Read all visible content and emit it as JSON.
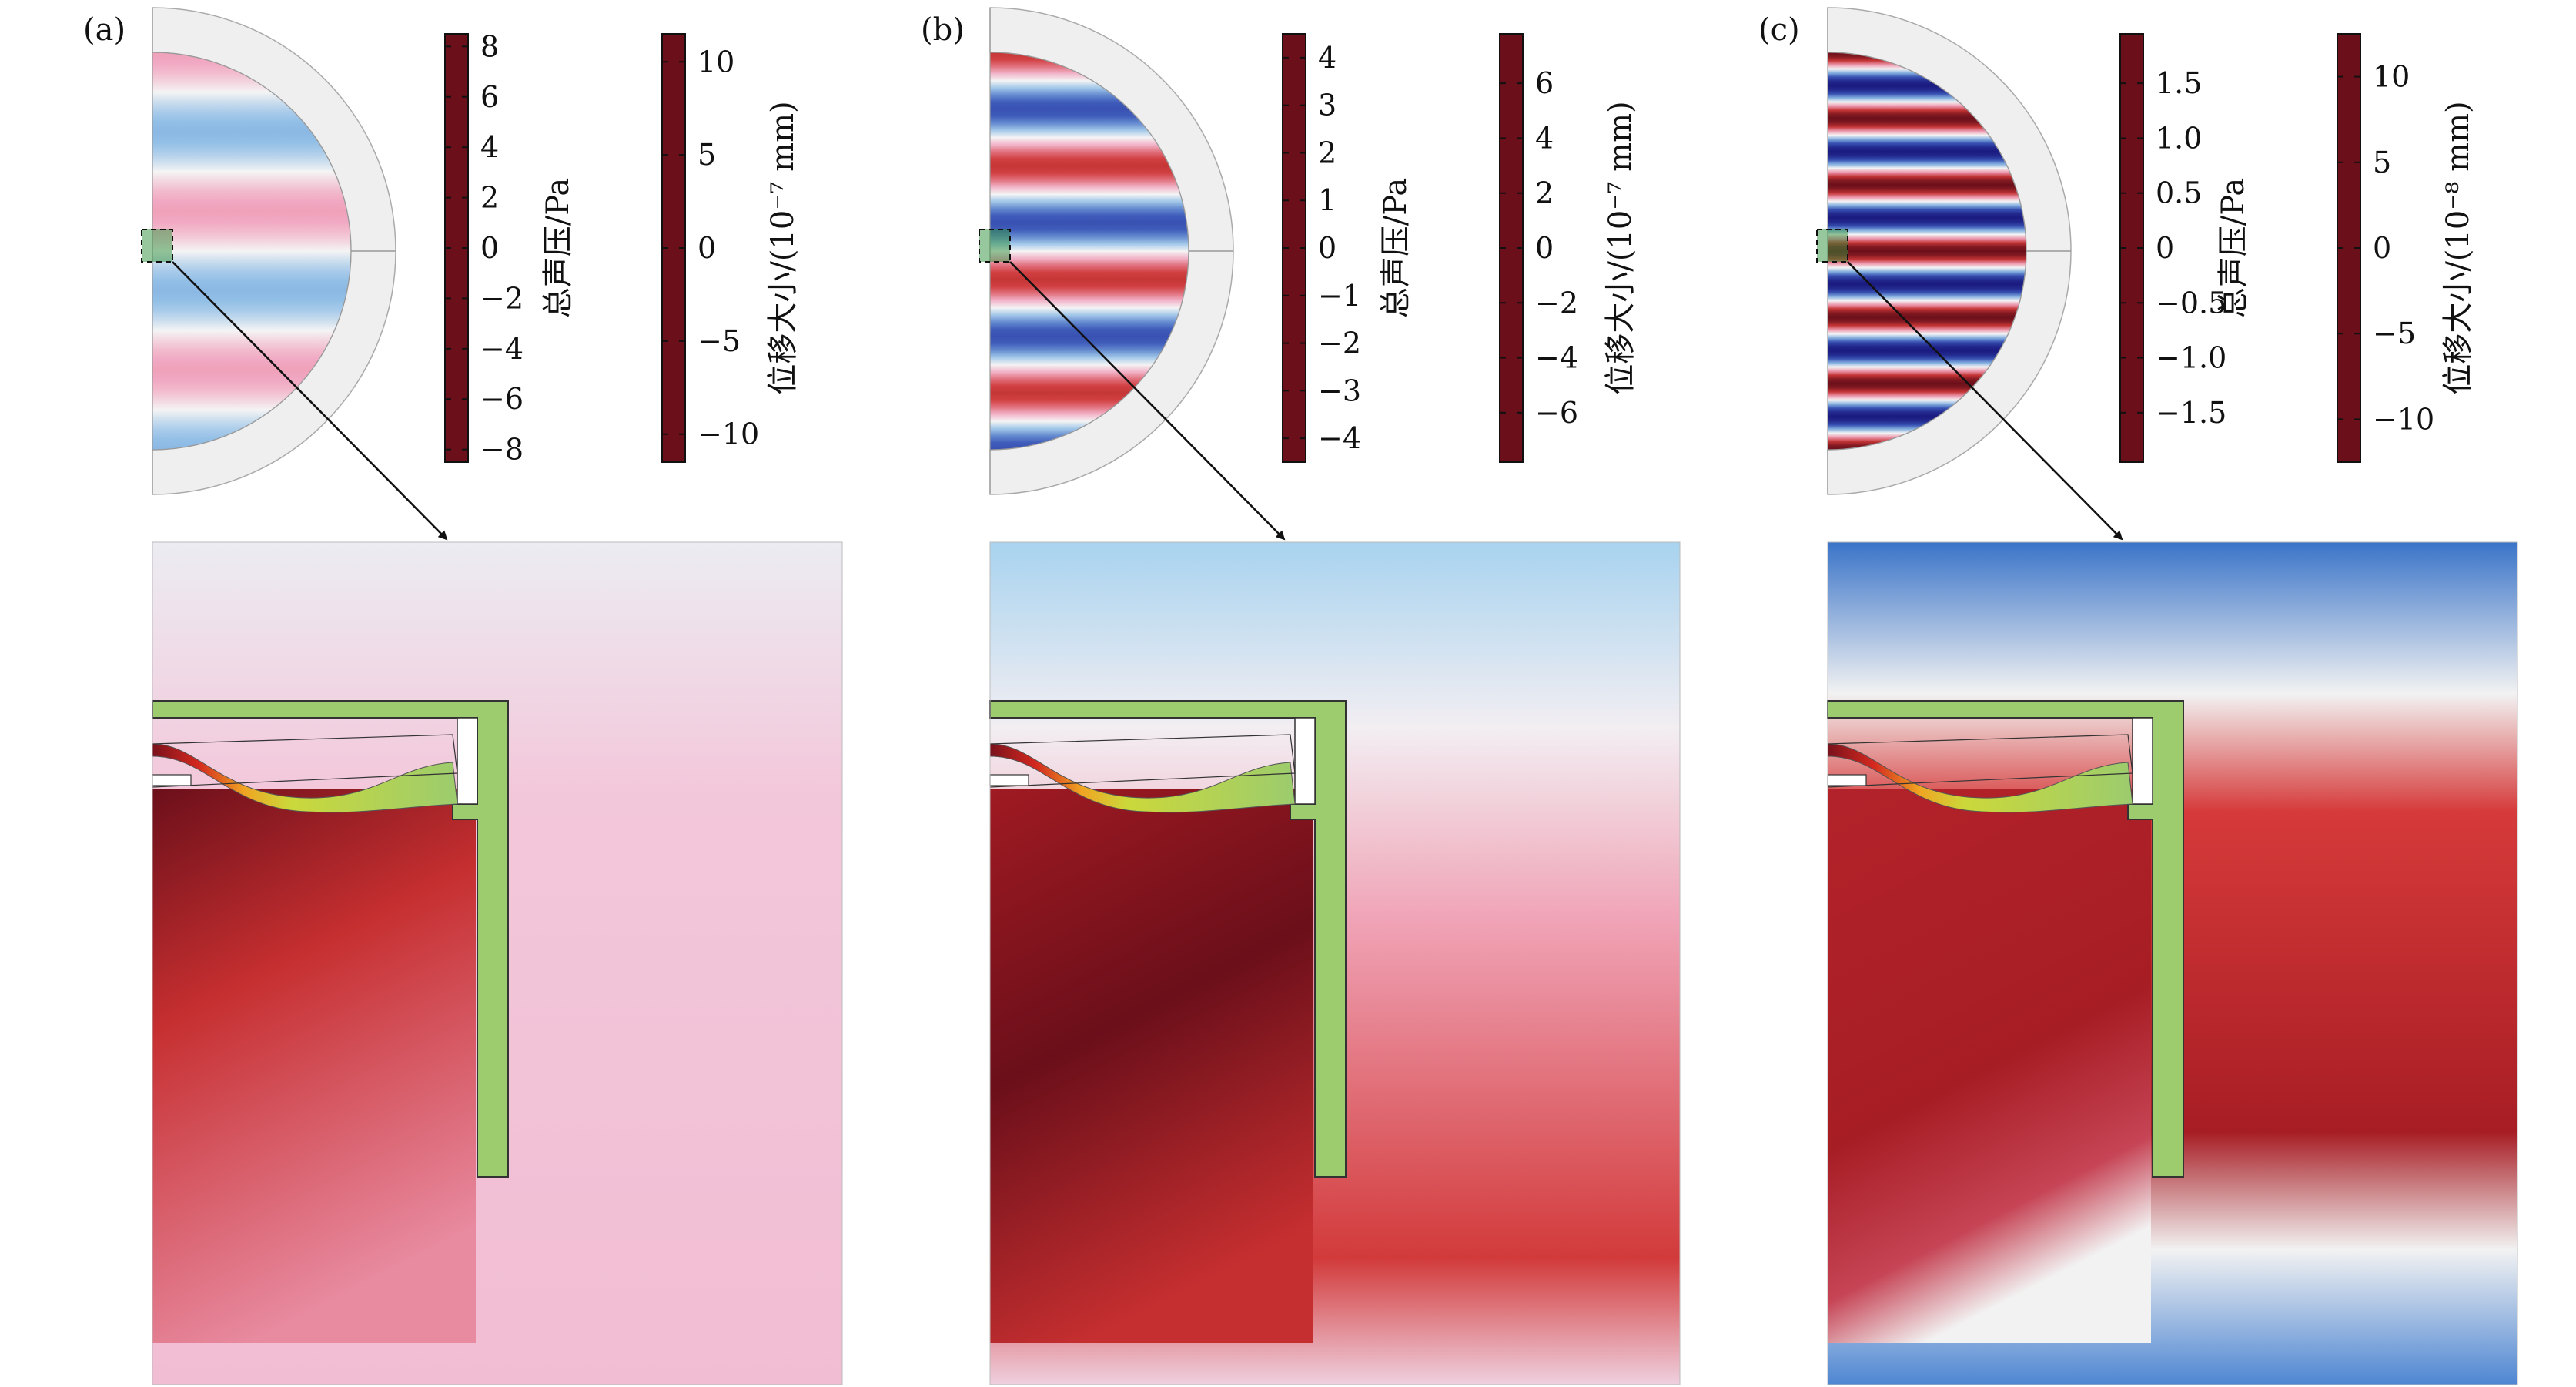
{
  "panels": [
    {
      "tag": "(a)",
      "pressure_scale": {
        "title": "总声压/Pa",
        "ticks": [
          "8",
          "6",
          "4",
          "2",
          "0",
          "−2",
          "−4",
          "−6",
          "−8"
        ],
        "range": [
          -8.5,
          8.5
        ]
      },
      "displacement_scale": {
        "title": "位移大小/(10⁻⁷ mm)",
        "ticks": [
          "10",
          "5",
          "0",
          "−5",
          "−10"
        ],
        "range": [
          -11.5,
          11.5
        ]
      },
      "stripes": 5,
      "stripe_strength": 0.35,
      "zoom_style": "pink"
    },
    {
      "tag": "(b)",
      "pressure_scale": {
        "title": "总声压/Pa",
        "ticks": [
          "4",
          "3",
          "2",
          "1",
          "0",
          "−1",
          "−2",
          "−3",
          "−4"
        ],
        "range": [
          -4.5,
          4.5
        ]
      },
      "displacement_scale": {
        "title": "位移大小/(10⁻⁷ mm)",
        "ticks": [
          "6",
          "4",
          "2",
          "0",
          "−2",
          "−4",
          "−6"
        ],
        "range": [
          -7.8,
          7.8
        ]
      },
      "stripes": 7,
      "stripe_strength": 0.7,
      "zoom_style": "darkred"
    },
    {
      "tag": "(c)",
      "pressure_scale": {
        "title": "总声压/Pa",
        "ticks": [
          "1.5",
          "1.0",
          "0.5",
          "0",
          "−0.5",
          "−1.0",
          "−1.5"
        ],
        "range": [
          -1.95,
          1.95
        ]
      },
      "displacement_scale": {
        "title": "位移大小/(10⁻⁸ mm)",
        "ticks": [
          "10",
          "5",
          "0",
          "−5",
          "−10"
        ],
        "range": [
          -12.5,
          12.5
        ]
      },
      "stripes": 12,
      "stripe_strength": 1.0,
      "zoom_style": "red-blue"
    }
  ],
  "colors": {
    "pressure_map": [
      "#1a1a80",
      "#3b57b8",
      "#8fbde6",
      "#f4f4f4",
      "#f1a6c0",
      "#cf3a3a",
      "#6b0f1a"
    ],
    "displacement_map": [
      "#1a1a80",
      "#2fa4e8",
      "#8ed1a0",
      "#cbd83a",
      "#f0a422",
      "#d3281f",
      "#6b0f1a"
    ],
    "structure_green": "#9ccc6e",
    "shell_gray": "#efefef"
  }
}
